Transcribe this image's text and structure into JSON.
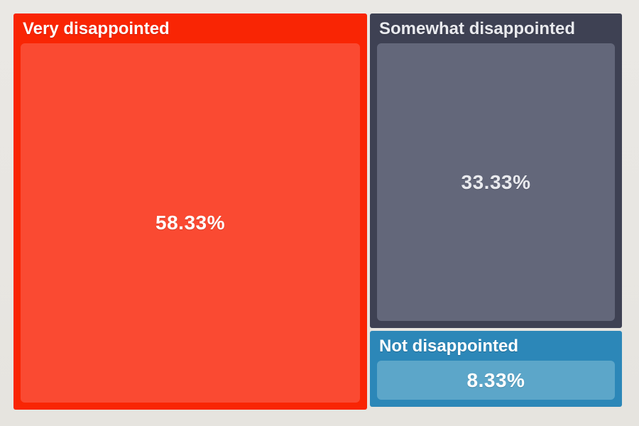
{
  "chart_data": {
    "type": "treemap",
    "title": "",
    "legend": "none",
    "background": "#e8e6e2",
    "categories": [
      "Very disappointed",
      "Somewhat disappointed",
      "Not disappointed"
    ],
    "values": [
      58.33,
      33.33,
      8.33
    ],
    "series": [
      {
        "label": "Very disappointed",
        "value": 58.33,
        "value_label": "58.33%",
        "fill": "#f92504",
        "inner_fill": "#fa4a32",
        "text_color": "#ffffff"
      },
      {
        "label": "Somewhat disappointed",
        "value": 33.33,
        "value_label": "33.33%",
        "fill": "#3e4153",
        "inner_fill": "#63677a",
        "text_color": "#e9eaee"
      },
      {
        "label": "Not disappointed",
        "value": 8.33,
        "value_label": "8.33%",
        "fill": "#2c87b8",
        "inner_fill": "#5ca6c9",
        "text_color": "#ffffff"
      }
    ]
  }
}
